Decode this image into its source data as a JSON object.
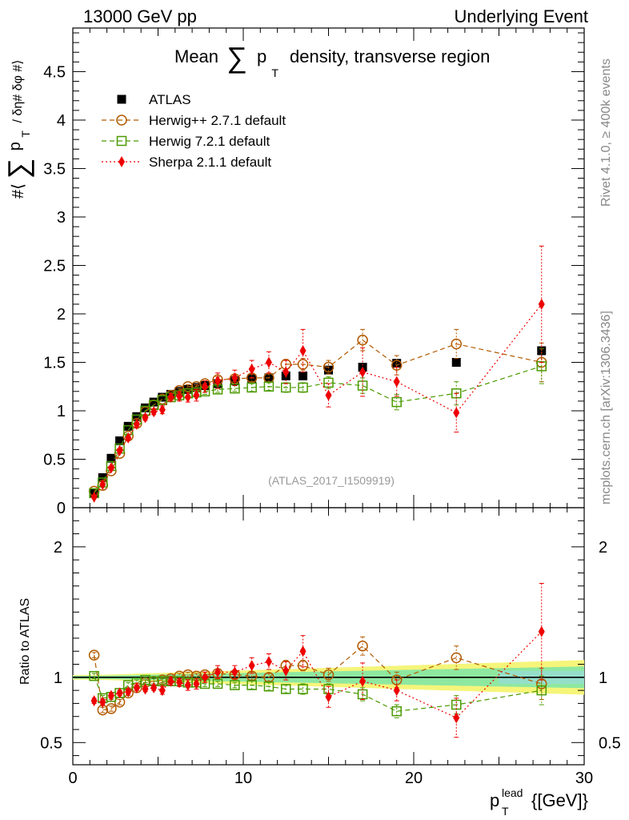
{
  "header": {
    "energy_label": "13000 GeV pp",
    "process_label": "Underlying Event"
  },
  "chart_data": {
    "type": "scatter",
    "title_pre": "Mean",
    "title_sum": "∑",
    "title_p": "p",
    "title_sub": "T",
    "title_post": "density, transverse region",
    "ylabel_pre": "#⟨",
    "ylabel_sum": "∑",
    "ylabel_p": "p",
    "ylabel_sub": "T",
    "ylabel_post": "/ δη# δφ #⟩",
    "ratio_ylabel": "Ratio to ATLAS",
    "xlabel_p": "p",
    "xlabel_sup": "lead",
    "xlabel_sub": "T",
    "xlabel_unit": "{[GeV]}",
    "analysis_id": "(ATLAS_2017_I1509919)",
    "side_rivet": "Rivet 4.1.0, ≥ 400k events",
    "side_mcplots": "mcplots.cern.ch [arXiv:1306.3436]",
    "xlim": [
      0,
      30
    ],
    "ylim_main": [
      0,
      4.95
    ],
    "ylim_ratio": [
      0.33,
      2.3
    ],
    "x_ticks": [
      0,
      10,
      20,
      30
    ],
    "main_y_ticks": [
      "0",
      "0.5",
      "1",
      "1.5",
      "2",
      "2.5",
      "3",
      "3.5",
      "4",
      "4.5"
    ],
    "main_y_tick_values": [
      0,
      0.5,
      1,
      1.5,
      2,
      2.5,
      3,
      3.5,
      4,
      4.5
    ],
    "ratio_y_ticks": [
      "0.5",
      "1",
      "2"
    ],
    "ratio_y_tick_values": [
      0.5,
      1,
      2
    ],
    "legend_position": "top-left",
    "series": [
      {
        "name": "ATLAS",
        "color": "#000000",
        "marker": "filled-square",
        "x": [
          1.25,
          1.75,
          2.25,
          2.75,
          3.25,
          3.75,
          4.25,
          4.75,
          5.25,
          5.75,
          6.25,
          6.75,
          7.25,
          7.75,
          8.5,
          9.5,
          10.5,
          11.5,
          12.5,
          13.5,
          15,
          17,
          19,
          22.5,
          27.5
        ],
        "y": [
          0.15,
          0.31,
          0.51,
          0.69,
          0.84,
          0.94,
          1.03,
          1.09,
          1.14,
          1.17,
          1.2,
          1.22,
          1.24,
          1.26,
          1.28,
          1.31,
          1.33,
          1.34,
          1.36,
          1.36,
          1.42,
          1.45,
          1.49,
          1.5,
          1.62
        ]
      },
      {
        "name": "Herwig++ 2.7.1 default",
        "color": "#b35a00",
        "marker": "open-circle",
        "line": "dashed",
        "x": [
          1.25,
          1.75,
          2.25,
          2.75,
          3.25,
          3.75,
          4.25,
          4.75,
          5.25,
          5.75,
          6.25,
          6.75,
          7.25,
          7.75,
          8.5,
          9.5,
          10.5,
          11.5,
          12.5,
          13.5,
          15,
          17,
          19,
          22.5,
          27.5
        ],
        "y": [
          0.17,
          0.23,
          0.38,
          0.56,
          0.74,
          0.87,
          0.99,
          1.06,
          1.12,
          1.16,
          1.21,
          1.25,
          1.25,
          1.28,
          1.32,
          1.33,
          1.34,
          1.34,
          1.48,
          1.48,
          1.45,
          1.73,
          1.47,
          1.69,
          1.5
        ],
        "err": [
          0.01,
          0.01,
          0.01,
          0.01,
          0.01,
          0.01,
          0.01,
          0.01,
          0.01,
          0.02,
          0.02,
          0.02,
          0.02,
          0.03,
          0.03,
          0.03,
          0.04,
          0.04,
          0.05,
          0.06,
          0.07,
          0.11,
          0.1,
          0.15,
          0.2
        ],
        "ratio": [
          1.17,
          0.75,
          0.76,
          0.81,
          0.88,
          0.92,
          0.96,
          0.97,
          0.98,
          0.99,
          1.01,
          1.02,
          1.01,
          1.02,
          1.03,
          1.02,
          1.01,
          1.0,
          1.09,
          1.09,
          1.02,
          1.24,
          0.98,
          1.15,
          0.95
        ],
        "ratio_err": [
          0.02,
          0.02,
          0.02,
          0.02,
          0.02,
          0.02,
          0.02,
          0.02,
          0.02,
          0.02,
          0.02,
          0.02,
          0.02,
          0.02,
          0.03,
          0.03,
          0.03,
          0.03,
          0.04,
          0.04,
          0.05,
          0.07,
          0.06,
          0.09,
          0.12
        ]
      },
      {
        "name": "Herwig 7.2.1 default",
        "color": "#4a9a00",
        "marker": "open-square",
        "line": "dashed",
        "x": [
          1.25,
          1.75,
          2.25,
          2.75,
          3.25,
          3.75,
          4.25,
          4.75,
          5.25,
          5.75,
          6.25,
          6.75,
          7.25,
          7.75,
          8.5,
          9.5,
          10.5,
          11.5,
          12.5,
          13.5,
          15,
          17,
          19,
          22.5,
          27.5
        ],
        "y": [
          0.15,
          0.26,
          0.43,
          0.61,
          0.8,
          0.91,
          1.0,
          1.06,
          1.11,
          1.14,
          1.16,
          1.18,
          1.19,
          1.2,
          1.22,
          1.23,
          1.24,
          1.25,
          1.24,
          1.24,
          1.29,
          1.26,
          1.09,
          1.18,
          1.46
        ],
        "err": [
          0.01,
          0.01,
          0.01,
          0.01,
          0.01,
          0.01,
          0.01,
          0.01,
          0.01,
          0.02,
          0.02,
          0.02,
          0.02,
          0.03,
          0.03,
          0.03,
          0.04,
          0.04,
          0.05,
          0.05,
          0.06,
          0.08,
          0.08,
          0.12,
          0.18
        ],
        "ratio": [
          1.01,
          0.84,
          0.85,
          0.88,
          0.94,
          0.96,
          0.98,
          0.97,
          0.97,
          0.97,
          0.97,
          0.96,
          0.96,
          0.95,
          0.95,
          0.94,
          0.94,
          0.93,
          0.91,
          0.91,
          0.91,
          0.87,
          0.74,
          0.79,
          0.9
        ],
        "ratio_err": [
          0.02,
          0.02,
          0.02,
          0.02,
          0.02,
          0.02,
          0.02,
          0.02,
          0.02,
          0.02,
          0.02,
          0.02,
          0.02,
          0.02,
          0.02,
          0.02,
          0.03,
          0.03,
          0.03,
          0.04,
          0.04,
          0.05,
          0.05,
          0.07,
          0.11
        ]
      },
      {
        "name": "Sherpa 2.1.1 default",
        "color": "#ee0000",
        "marker": "filled-diamond",
        "line": "dotted",
        "x": [
          1.25,
          1.75,
          2.25,
          2.75,
          3.25,
          3.75,
          4.25,
          4.75,
          5.25,
          5.75,
          6.25,
          6.75,
          7.25,
          7.75,
          8.5,
          9.5,
          10.5,
          11.5,
          12.5,
          13.5,
          15,
          17,
          19,
          22.5,
          27.5
        ],
        "y": [
          0.11,
          0.24,
          0.41,
          0.59,
          0.72,
          0.86,
          0.93,
          0.99,
          1.01,
          1.14,
          1.15,
          1.14,
          1.16,
          1.25,
          1.31,
          1.34,
          1.43,
          1.5,
          1.4,
          1.62,
          1.16,
          1.4,
          1.3,
          0.98,
          2.1
        ],
        "err": [
          0.01,
          0.01,
          0.02,
          0.02,
          0.02,
          0.02,
          0.03,
          0.03,
          0.04,
          0.04,
          0.05,
          0.05,
          0.06,
          0.06,
          0.08,
          0.08,
          0.09,
          0.11,
          0.12,
          0.22,
          0.12,
          0.25,
          0.15,
          0.2,
          0.6
        ],
        "ratio": [
          0.82,
          0.81,
          0.86,
          0.88,
          0.89,
          0.92,
          0.91,
          0.92,
          0.9,
          0.97,
          0.96,
          0.94,
          0.95,
          1.0,
          1.04,
          1.04,
          1.09,
          1.12,
          1.05,
          1.2,
          0.85,
          0.97,
          0.9,
          0.69,
          1.35
        ],
        "ratio_err": [
          0.02,
          0.02,
          0.02,
          0.02,
          0.02,
          0.02,
          0.02,
          0.02,
          0.03,
          0.03,
          0.03,
          0.04,
          0.04,
          0.04,
          0.05,
          0.05,
          0.06,
          0.06,
          0.07,
          0.12,
          0.08,
          0.14,
          0.08,
          0.15,
          0.37
        ]
      }
    ],
    "colors": {
      "band_yellow": "#f5f57a",
      "band_green": "#8ee8a0",
      "band_cyan": "#9ad8e6",
      "analysis_grey": "#999999",
      "side_grey": "#888888"
    }
  }
}
